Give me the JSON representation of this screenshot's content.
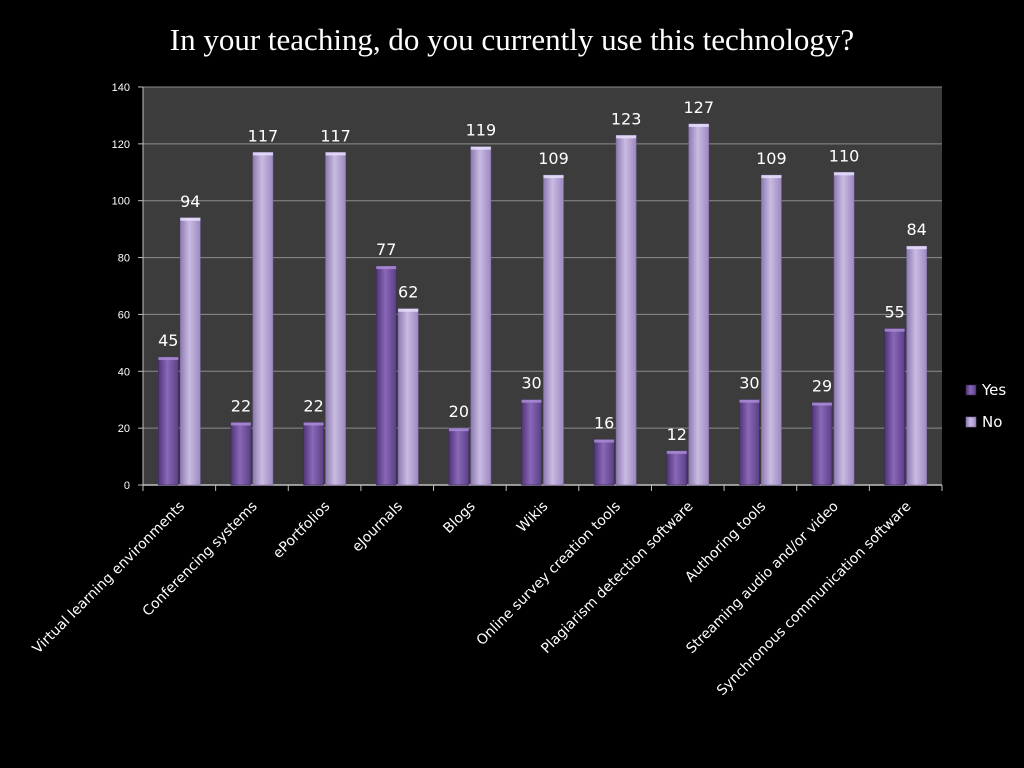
{
  "slide": {
    "title": "In your teaching, do you currently use this technology?"
  },
  "chart_data": {
    "type": "bar",
    "title": "In your teaching, do you currently use this technology?",
    "categories": [
      "Virtual learning environments",
      "Conferencing systems",
      "ePortfolios",
      "eJournals",
      "Blogs",
      "Wikis",
      "Online survey creation tools",
      "Plagiarism detection software",
      "Authoring tools",
      "Streaming audio and/or video",
      "Synchronous communication software"
    ],
    "series": [
      {
        "name": "Yes",
        "values": [
          45,
          22,
          22,
          77,
          20,
          30,
          16,
          12,
          30,
          29,
          55
        ],
        "color": "#7b5aa6"
      },
      {
        "name": "No",
        "values": [
          94,
          117,
          117,
          62,
          119,
          109,
          123,
          127,
          109,
          110,
          84
        ],
        "color": "#b4a2d2"
      }
    ],
    "ylim": [
      0,
      140
    ],
    "yticks": [
      0,
      20,
      40,
      60,
      80,
      100,
      120,
      140
    ],
    "grid": true,
    "legend": "right",
    "plot_background": "#3c3c3c"
  }
}
